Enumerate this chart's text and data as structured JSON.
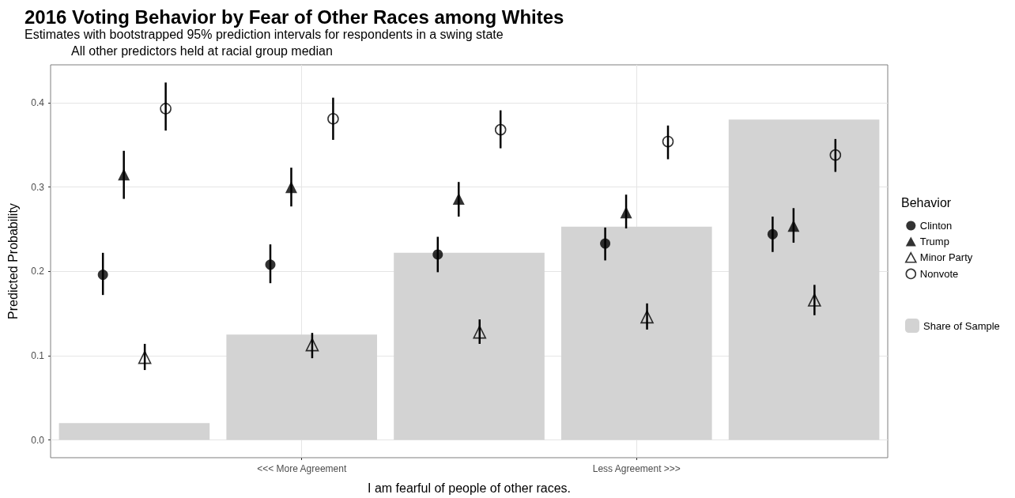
{
  "chart_data": {
    "type": "scatter",
    "title": "2016 Voting Behavior by Fear of Other Races among Whites",
    "subtitle": "Estimates with bootstrapped 95% prediction intervals for respondents in a swing state",
    "annotations": [
      "All other predictors held at racial group median"
    ],
    "xlabel": "I am fearful of people of other races.",
    "ylabel": "Predicted Probability",
    "legend_title": "Behavior",
    "legend": "right",
    "grid": true,
    "categories": [
      null,
      "<<< More Agreement",
      null,
      "Less Agreement >>>",
      null
    ],
    "ylim": [
      -0.021,
      0.445
    ],
    "yticks": [
      {
        "value": 0,
        "label": "0.0"
      },
      0.1,
      0.2,
      0.3,
      0.4
    ],
    "series": [
      {
        "type": "bar",
        "name": "Share of Sample",
        "color": "#d3d3d3",
        "values": [
          0.02,
          0.125,
          0.222,
          0.253,
          0.38
        ]
      },
      {
        "name": "Clinton",
        "color": "#000000",
        "marker": "circle",
        "values": [
          0.196,
          0.208,
          0.22,
          0.233,
          0.244
        ],
        "errors": [
          [
            0.172,
            0.222
          ],
          [
            0.186,
            0.232
          ],
          [
            0.199,
            0.241
          ],
          [
            0.213,
            0.252
          ],
          [
            0.223,
            0.265
          ]
        ]
      },
      {
        "name": "Trump",
        "color": "#000000",
        "marker": "triangle",
        "values": [
          0.315,
          0.3,
          0.286,
          0.27,
          0.254
        ],
        "errors": [
          [
            0.286,
            0.343
          ],
          [
            0.277,
            0.323
          ],
          [
            0.265,
            0.306
          ],
          [
            0.251,
            0.291
          ],
          [
            0.234,
            0.275
          ]
        ]
      },
      {
        "name": "Minor Party",
        "color": "#000000",
        "marker": "triangle-open",
        "values": [
          0.098,
          0.113,
          0.128,
          0.146,
          0.166
        ],
        "errors": [
          [
            0.083,
            0.114
          ],
          [
            0.097,
            0.127
          ],
          [
            0.114,
            0.143
          ],
          [
            0.131,
            0.162
          ],
          [
            0.148,
            0.184
          ]
        ]
      },
      {
        "name": "Nonvote",
        "color": "#000000",
        "marker": "circle-open",
        "values": [
          0.393,
          0.381,
          0.368,
          0.354,
          0.338
        ],
        "errors": [
          [
            0.367,
            0.424
          ],
          [
            0.356,
            0.406
          ],
          [
            0.346,
            0.391
          ],
          [
            0.333,
            0.373
          ],
          [
            0.318,
            0.357
          ]
        ]
      }
    ]
  }
}
